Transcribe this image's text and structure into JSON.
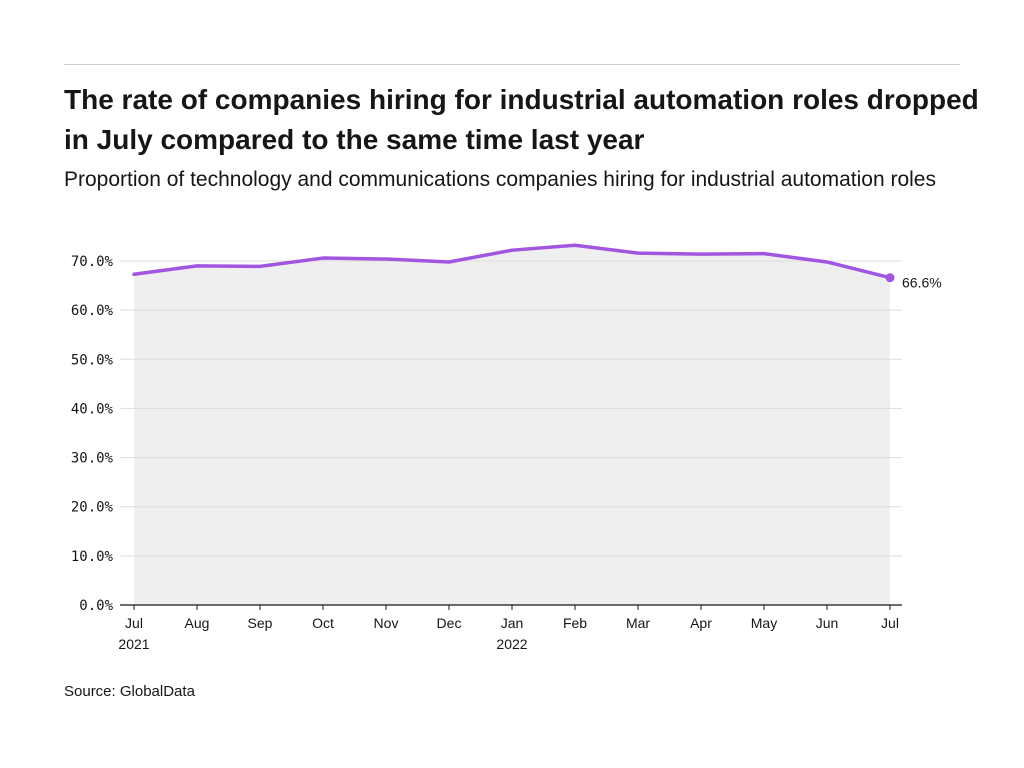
{
  "chart_data": {
    "type": "area",
    "title": "The rate of companies hiring for industrial automation roles dropped in July compared to the same time last year",
    "subtitle": "Proportion of technology and communications companies hiring for industrial automation roles",
    "source": "Source: GlobalData",
    "categories": [
      "Jul\n2021",
      "Aug",
      "Sep",
      "Oct",
      "Nov",
      "Dec",
      "Jan\n2022",
      "Feb",
      "Mar",
      "Apr",
      "May",
      "Jun",
      "Jul"
    ],
    "values": [
      67.3,
      69.0,
      68.9,
      70.6,
      70.4,
      69.8,
      72.2,
      73.2,
      71.6,
      71.4,
      71.5,
      69.8,
      66.6
    ],
    "ylim": [
      0,
      70
    ],
    "yticks": [
      "0.0%",
      "10.0%",
      "20.0%",
      "30.0%",
      "40.0%",
      "50.0%",
      "60.0%",
      "70.0%"
    ],
    "last_label": "66.6%",
    "grid": true,
    "colors": {
      "line": "#a056e0",
      "area": "#efefef",
      "grid": "#dddddd"
    }
  }
}
